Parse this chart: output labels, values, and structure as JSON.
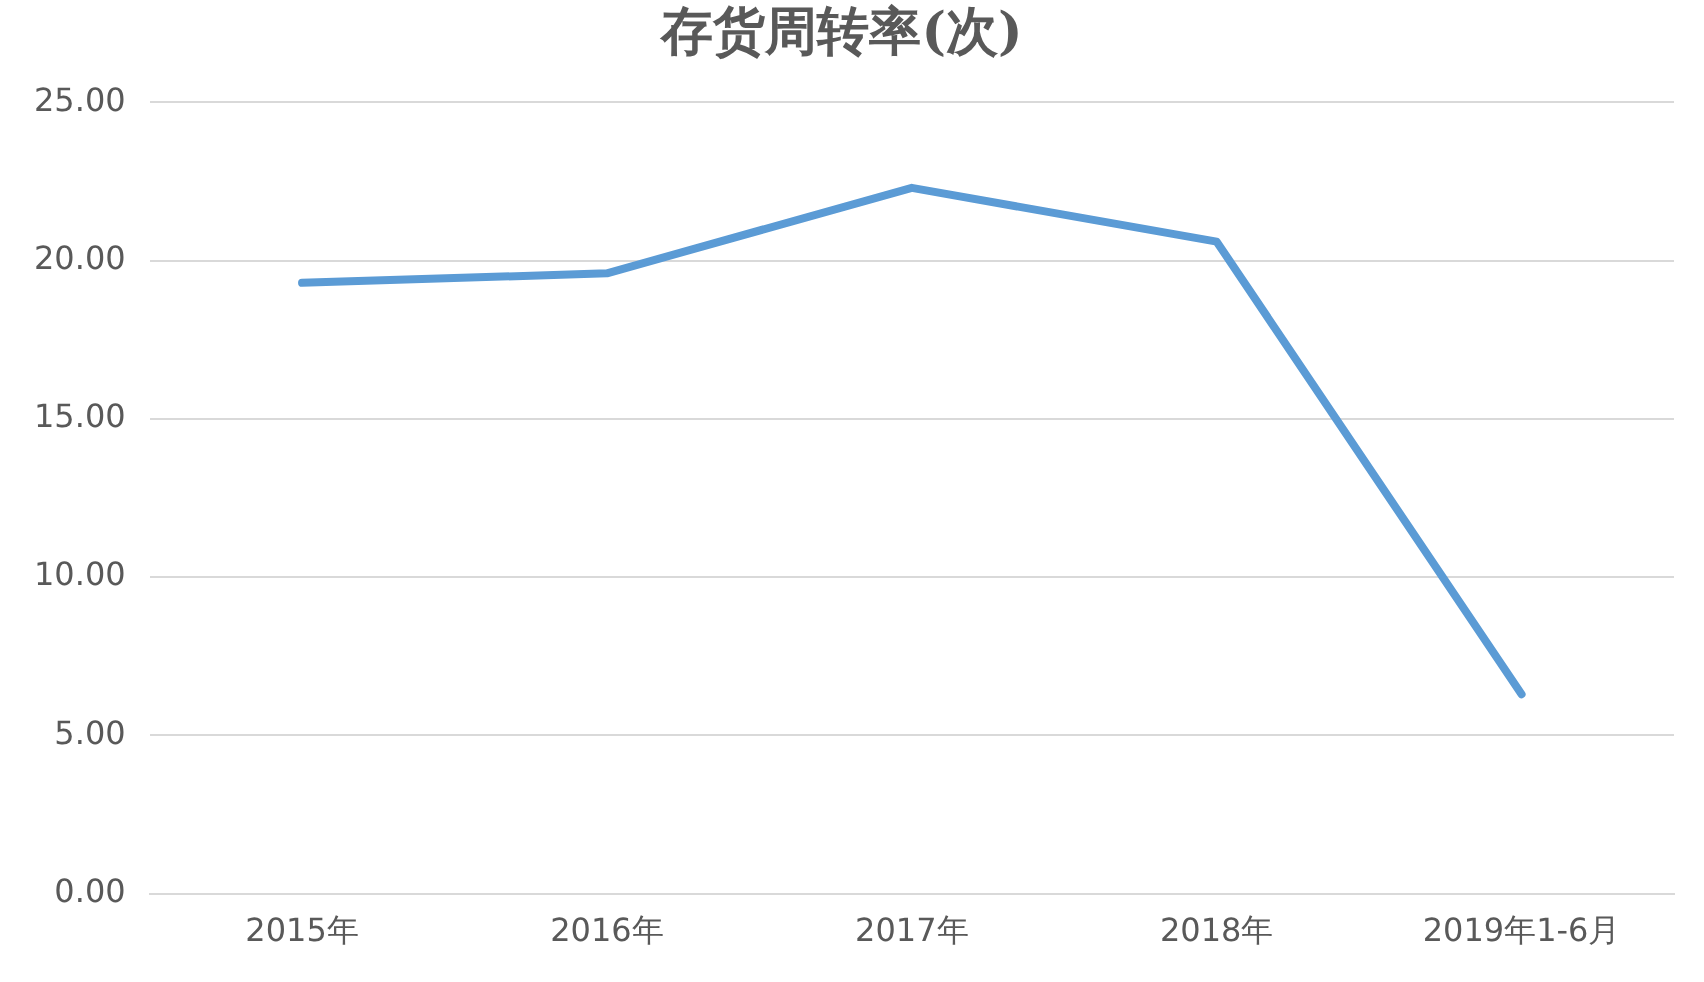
{
  "chart_data": {
    "type": "line",
    "title": "存货周转率(次)",
    "categories": [
      "2015年",
      "2016年",
      "2017年",
      "2018年",
      "2019年1-6月"
    ],
    "series": [
      {
        "color": "#5b9bd5",
        "values": [
          19.3,
          19.6,
          22.3,
          20.6,
          6.3
        ]
      }
    ],
    "ylim": [
      0,
      25
    ],
    "yticks": [
      {
        "value": 0,
        "label": "0.00"
      },
      {
        "value": 5,
        "label": "5.00"
      },
      {
        "value": 10,
        "label": "10.00"
      },
      {
        "value": 15,
        "label": "15.00"
      },
      {
        "value": 20,
        "label": "20.00"
      },
      {
        "value": 25,
        "label": "25.00"
      }
    ],
    "grid": "y",
    "marker": "none",
    "line_style": "solid"
  }
}
